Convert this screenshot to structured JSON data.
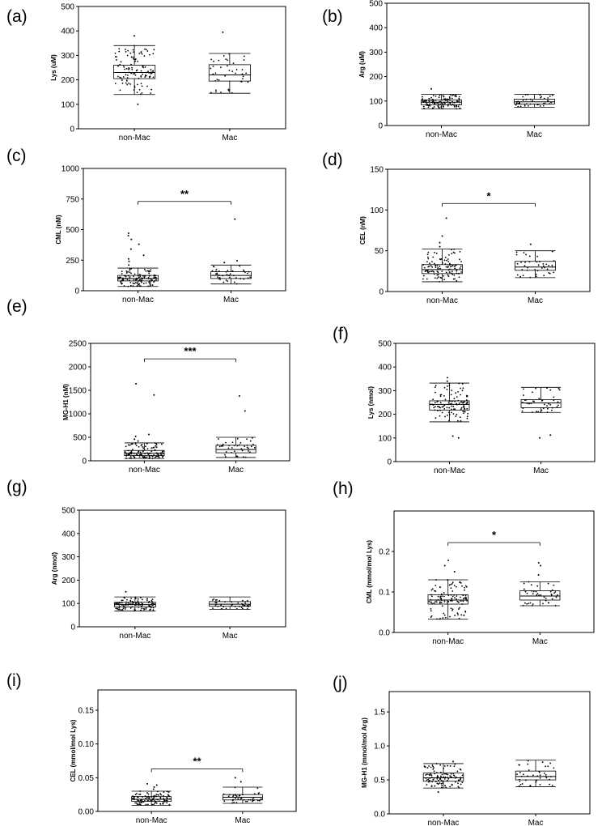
{
  "chart_data": [
    {
      "panel_label": "(a)",
      "type": "box",
      "ylabel": "Lys (uM)",
      "ylim": [
        0,
        500
      ],
      "yticks": [
        0,
        100,
        200,
        300,
        400,
        500
      ],
      "categories": [
        "non-Mac",
        "Mac"
      ],
      "boxes": [
        {
          "whisker_low": 140,
          "q1": 205,
          "median": 230,
          "q3": 260,
          "whisker_high": 340,
          "outliers": [
            100,
            380
          ]
        },
        {
          "whisker_low": 145,
          "q1": 195,
          "median": 220,
          "q3": 262,
          "whisker_high": 308,
          "outliers": [
            395
          ]
        }
      ],
      "significance": ""
    },
    {
      "panel_label": "(b)",
      "type": "box",
      "ylabel": "Arg (uM)",
      "ylim": [
        0,
        500
      ],
      "yticks": [
        0,
        100,
        200,
        300,
        400,
        500
      ],
      "categories": [
        "non-Mac",
        "Mac"
      ],
      "boxes": [
        {
          "whisker_low": 68,
          "q1": 85,
          "median": 95,
          "q3": 105,
          "whisker_high": 128,
          "outliers": [
            150
          ]
        },
        {
          "whisker_low": 75,
          "q1": 88,
          "median": 97,
          "q3": 108,
          "whisker_high": 128,
          "outliers": []
        }
      ],
      "significance": ""
    },
    {
      "panel_label": "(c)",
      "type": "box",
      "ylabel": "CML (nM)",
      "ylim": [
        0,
        1000
      ],
      "yticks": [
        0,
        250,
        500,
        750,
        1000
      ],
      "categories": [
        "non-Mac",
        "Mac"
      ],
      "boxes": [
        {
          "whisker_low": 35,
          "q1": 80,
          "median": 100,
          "q3": 125,
          "whisker_high": 185,
          "outliers": [
            210,
            240,
            260,
            290,
            340,
            380,
            420,
            450,
            470
          ]
        },
        {
          "whisker_low": 55,
          "q1": 100,
          "median": 125,
          "q3": 155,
          "whisker_high": 210,
          "outliers": [
            230,
            245,
            585
          ]
        }
      ],
      "significance": "**"
    },
    {
      "panel_label": "(d)",
      "type": "box",
      "ylabel": "CEL (nM)",
      "ylim": [
        0,
        150
      ],
      "yticks": [
        0,
        50,
        100,
        150
      ],
      "categories": [
        "non-Mac",
        "Mac"
      ],
      "boxes": [
        {
          "whisker_low": 12,
          "q1": 22,
          "median": 27,
          "q3": 33,
          "whisker_high": 52,
          "outliers": [
            55,
            60,
            68,
            90
          ]
        },
        {
          "whisker_low": 17,
          "q1": 26,
          "median": 30,
          "q3": 37,
          "whisker_high": 50,
          "outliers": [
            58
          ]
        }
      ],
      "significance": "*"
    },
    {
      "panel_label": "(e)",
      "type": "box",
      "ylabel": "MG-H1 (nM)",
      "ylim": [
        0,
        2500
      ],
      "yticks": [
        0,
        500,
        1000,
        1500,
        2000,
        2500
      ],
      "categories": [
        "non-Mac",
        "Mac"
      ],
      "boxes": [
        {
          "whisker_low": 50,
          "q1": 110,
          "median": 160,
          "q3": 220,
          "whisker_high": 380,
          "outliers": [
            420,
            460,
            520,
            560,
            1400,
            1640
          ]
        },
        {
          "whisker_low": 70,
          "q1": 170,
          "median": 240,
          "q3": 330,
          "whisker_high": 500,
          "outliers": [
            1060,
            1380
          ]
        }
      ],
      "significance": "***"
    },
    {
      "panel_label": "(f)",
      "type": "box",
      "ylabel": "Lys (nmol)",
      "ylim": [
        0,
        500
      ],
      "yticks": [
        0,
        100,
        200,
        300,
        400,
        500
      ],
      "categories": [
        "non-Mac",
        "Mac"
      ],
      "boxes": [
        {
          "whisker_low": 168,
          "q1": 218,
          "median": 242,
          "q3": 257,
          "whisker_high": 332,
          "outliers": [
            100,
            108,
            340,
            355
          ]
        },
        {
          "whisker_low": 208,
          "q1": 228,
          "median": 248,
          "q3": 262,
          "whisker_high": 314,
          "outliers": [
            100,
            112
          ]
        }
      ],
      "significance": ""
    },
    {
      "panel_label": "(g)",
      "type": "box",
      "ylabel": "Arg (nmol)",
      "ylim": [
        0,
        500
      ],
      "yticks": [
        0,
        100,
        200,
        300,
        400,
        500
      ],
      "categories": [
        "non-Mac",
        "Mac"
      ],
      "boxes": [
        {
          "whisker_low": 68,
          "q1": 85,
          "median": 95,
          "q3": 105,
          "whisker_high": 128,
          "outliers": [
            150
          ]
        },
        {
          "whisker_low": 75,
          "q1": 88,
          "median": 97,
          "q3": 108,
          "whisker_high": 128,
          "outliers": []
        }
      ],
      "significance": ""
    },
    {
      "panel_label": "(h)",
      "type": "box",
      "ylabel": "CML (mmol/mol Lys)",
      "ylim": [
        0,
        0.3
      ],
      "yticks": [
        0,
        0.1,
        0.2
      ],
      "ytick_labels": [
        "0.0",
        "0.1",
        "0.2"
      ],
      "categories": [
        "non-Mac",
        "Mac"
      ],
      "boxes": [
        {
          "whisker_low": 0.033,
          "q1": 0.07,
          "median": 0.08,
          "q3": 0.093,
          "whisker_high": 0.13,
          "outliers": [
            0.15,
            0.165,
            0.178
          ]
        },
        {
          "whisker_low": 0.066,
          "q1": 0.08,
          "median": 0.09,
          "q3": 0.103,
          "whisker_high": 0.125,
          "outliers": [
            0.142,
            0.165,
            0.172
          ]
        }
      ],
      "significance": "*"
    },
    {
      "panel_label": "(i)",
      "type": "box",
      "ylabel": "CEL (mmol/mol Lys)",
      "ylim": [
        0,
        0.18
      ],
      "yticks": [
        0,
        0.05,
        0.1,
        0.15
      ],
      "ytick_labels": [
        "0.00",
        "0.05",
        "0.10",
        "0.15"
      ],
      "categories": [
        "non-Mac",
        "Mac"
      ],
      "boxes": [
        {
          "whisker_low": 0.009,
          "q1": 0.015,
          "median": 0.018,
          "q3": 0.022,
          "whisker_high": 0.03,
          "outliers": [
            0.033,
            0.036,
            0.039,
            0.041
          ]
        },
        {
          "whisker_low": 0.012,
          "q1": 0.017,
          "median": 0.021,
          "q3": 0.025,
          "whisker_high": 0.036,
          "outliers": [
            0.044,
            0.05
          ]
        }
      ],
      "significance": "**"
    },
    {
      "panel_label": "(j)",
      "type": "box",
      "ylabel": "MG-H1 (mmol/mol Arg)",
      "ylim": [
        0,
        1.8
      ],
      "yticks": [
        0,
        0.5,
        1,
        1.5
      ],
      "ytick_labels": [
        "0.0",
        "0.5",
        "1.0",
        "1.5"
      ],
      "categories": [
        "non-Mac",
        "Mac"
      ],
      "boxes": [
        {
          "whisker_low": 0.38,
          "q1": 0.48,
          "median": 0.53,
          "q3": 0.6,
          "whisker_high": 0.74,
          "outliers": [
            0.32,
            0.77
          ]
        },
        {
          "whisker_low": 0.4,
          "q1": 0.5,
          "median": 0.55,
          "q3": 0.63,
          "whisker_high": 0.79,
          "outliers": []
        }
      ],
      "significance": ""
    }
  ]
}
